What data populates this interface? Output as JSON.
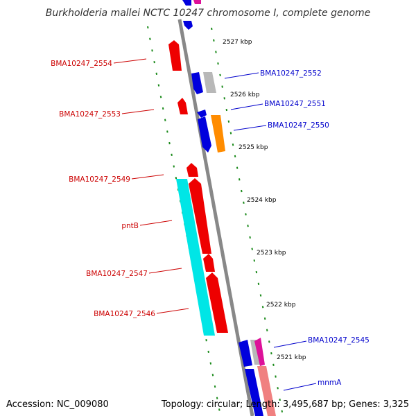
{
  "title": "Burkholderia mallei NCTC 10247 chromosome I, complete genome",
  "accession": "Accession: NC_009080",
  "summary": "Topology: circular; Length: 3,495,687 bp; Genes: 3,325",
  "kbp_ticks": [
    "2527 kbp",
    "2526 kbp",
    "2525 kbp",
    "2524 kbp",
    "2523 kbp",
    "2522 kbp",
    "2521 kbp"
  ],
  "genes_left": [
    "BMA10247_2554",
    "BMA10247_2553",
    "BMA10247_2549",
    "pntB",
    "BMA10247_2547",
    "BMA10247_2546"
  ],
  "genes_right": [
    "BMA10247_2552",
    "BMA10247_2551",
    "BMA10247_2550",
    "BMA10247_2545",
    "mnmA"
  ],
  "colors": {
    "left_label": "#cc0000",
    "right_label": "#0000cc",
    "red_gene": "#ee0000",
    "blue_gene": "#0000dd",
    "cyan_gene": "#00e6e6",
    "gray_gene": "#b8b8b8",
    "orange_gene": "#ff8c00",
    "magenta_gene": "#dd1199",
    "salmon_gene": "#f08080",
    "backbone": "#888888",
    "ring_dash": "#1a8a1a"
  }
}
